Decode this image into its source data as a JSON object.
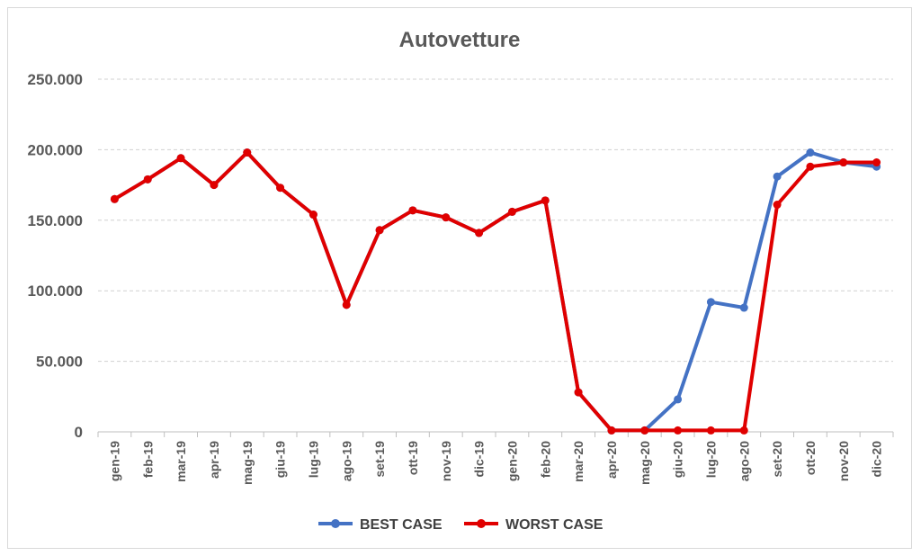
{
  "chart_data": {
    "type": "line",
    "title": "Autovetture",
    "xlabel": "",
    "ylabel": "",
    "ylim": [
      0,
      250000
    ],
    "yticks": [
      0,
      50000,
      100000,
      150000,
      200000,
      250000
    ],
    "ytick_labels": [
      "0",
      "50.000",
      "100.000",
      "150.000",
      "200.000",
      "250.000"
    ],
    "grid": true,
    "legend_position": "bottom",
    "categories": [
      "gen-19",
      "feb-19",
      "mar-19",
      "apr-19",
      "mag-19",
      "giu-19",
      "lug-19",
      "ago-19",
      "set-19",
      "ott-19",
      "nov-19",
      "dic-19",
      "gen-20",
      "feb-20",
      "mar-20",
      "apr-20",
      "mag-20",
      "giu-20",
      "lug-20",
      "ago-20",
      "set-20",
      "ott-20",
      "nov-20",
      "dic-20"
    ],
    "series": [
      {
        "name": "BEST CASE",
        "color": "#4472C4",
        "values": [
          165000,
          179000,
          194000,
          175000,
          198000,
          173000,
          154000,
          90000,
          143000,
          157000,
          152000,
          141000,
          156000,
          164000,
          28000,
          1000,
          1000,
          23000,
          92000,
          88000,
          181000,
          198000,
          191000,
          188000
        ]
      },
      {
        "name": "WORST CASE",
        "color": "#E00000",
        "values": [
          165000,
          179000,
          194000,
          175000,
          198000,
          173000,
          154000,
          90000,
          143000,
          157000,
          152000,
          141000,
          156000,
          164000,
          28000,
          1000,
          1000,
          1000,
          1000,
          1000,
          161000,
          188000,
          191000,
          191000
        ]
      }
    ]
  }
}
